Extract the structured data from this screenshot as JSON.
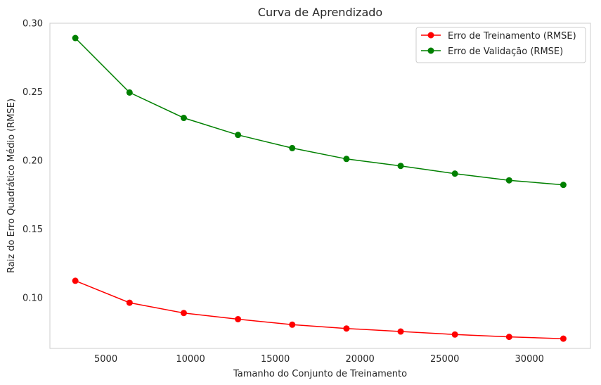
{
  "chart_data": {
    "type": "line",
    "title": "Curva de Aprendizado",
    "xlabel": "Tamanho do Conjunto de Treinamento",
    "ylabel": "Raiz do Erro Quadrático Médio (RMSE)",
    "xlim": [
      1700,
      33600
    ],
    "ylim": [
      0.063,
      0.3
    ],
    "x_ticks": [
      5000,
      10000,
      15000,
      20000,
      25000,
      30000
    ],
    "x_tick_labels": [
      "5000",
      "10000",
      "15000",
      "20000",
      "25000",
      "30000"
    ],
    "y_ticks": [
      0.1,
      0.15,
      0.2,
      0.25,
      0.3
    ],
    "y_tick_labels": [
      "0.10",
      "0.15",
      "0.20",
      "0.25",
      "0.30"
    ],
    "grid": false,
    "legend_position": "top-right",
    "x": [
      3200,
      6400,
      9600,
      12800,
      16000,
      19200,
      22400,
      25600,
      28800,
      32000
    ],
    "series": [
      {
        "name": "Erro de Treinamento (RMSE)",
        "color": "#ff0000",
        "values": [
          0.1123,
          0.0963,
          0.0888,
          0.0843,
          0.0803,
          0.0775,
          0.0753,
          0.0731,
          0.0714,
          0.0701
        ]
      },
      {
        "name": "Erro de Validação (RMSE)",
        "color": "#008000",
        "values": [
          0.2892,
          0.2495,
          0.231,
          0.2186,
          0.209,
          0.2011,
          0.196,
          0.1904,
          0.1855,
          0.1822
        ]
      }
    ]
  }
}
